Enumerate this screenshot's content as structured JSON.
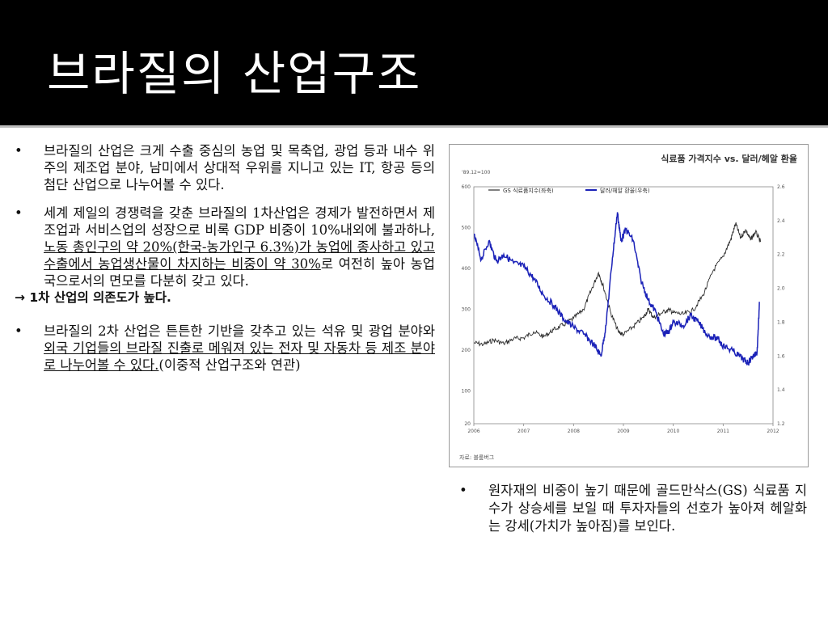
{
  "slide": {
    "title": "브라질의 산업구조"
  },
  "left_bullets": [
    {
      "text": "브라질의 산업은 크게 수출 중심의 농업 및 목축업, 광업 등과 내수 위주의 제조업 분야, 남미에서 상대적 우위를 지니고 있는 IT, 항공 등의 첨단 산업으로 나누어볼 수 있다."
    },
    {
      "pre": "세계 제일의 경쟁력을 갖춘 브라질의 1차산업은 경제가 발전하면서 제조업과 서비스업의 성장으로 비록 GDP 비중이 10%내외에 불과하나, ",
      "underlined": "노동 총인구의 약 20%(한국-농가인구 6.3%)가 농업에 종사하고 있고 수출에서 농업생산물이 차지하는 비중이 약 30%",
      "post": "로 여전히 높아 농업국으로서의 면모를 다분히 갖고 있다."
    },
    {
      "pre": "브라질의 2차 산업은 튼튼한 기반을 갖추고 있는 석유 및 광업 분야와 ",
      "underlined": "외국 기업들의 브라질 진출로 메워져 있는 전자 및 자동차 등 제조 분야로 나누어볼 수 있다.",
      "post": "(이중적 산업구조와 연관)"
    }
  ],
  "arrow_note": "→ 1차 산업의 의존도가 높다.",
  "right_bullet": "원자재의 비중이 높기 때문에 골드만삭스(GS) 식료품 지수가 상승세를 보일 때 투자자들의 선호가 높아져 헤알화는 강세(가치가 높아짐)를 보인다.",
  "bullet_glyph": "•",
  "chart_data": {
    "type": "line",
    "title": "식료품 가격지수 vs. 달러/헤알 환율",
    "left_axis_note": "'89.12=100",
    "source_note": "자료: 블룸버그",
    "x_ticks": [
      "2006",
      "2007",
      "2008",
      "2009",
      "2010",
      "2011",
      "2012"
    ],
    "xlim": [
      2006,
      2012
    ],
    "y_left_ticks": [
      "20",
      "100",
      "200",
      "300",
      "400",
      "500",
      "600"
    ],
    "y_left_lim": [
      20,
      600
    ],
    "y_right_ticks": [
      "1.2",
      "1.4",
      "1.6",
      "1.8",
      "2.0",
      "2.2",
      "2.4",
      "2.6"
    ],
    "y_right_lim": [
      1.2,
      2.6
    ],
    "colors": {
      "gs": "#2a2a2a",
      "fx": "#1b22b8"
    },
    "series": [
      {
        "name": "GS 식료품지수(좌축)",
        "axis": "left",
        "points": [
          [
            2006.0,
            218
          ],
          [
            2006.2,
            214
          ],
          [
            2006.4,
            225
          ],
          [
            2006.6,
            216
          ],
          [
            2006.8,
            228
          ],
          [
            2007.0,
            230
          ],
          [
            2007.2,
            245
          ],
          [
            2007.4,
            233
          ],
          [
            2007.6,
            250
          ],
          [
            2007.8,
            262
          ],
          [
            2008.0,
            278
          ],
          [
            2008.2,
            300
          ],
          [
            2008.35,
            345
          ],
          [
            2008.5,
            390
          ],
          [
            2008.6,
            355
          ],
          [
            2008.75,
            290
          ],
          [
            2008.9,
            245
          ],
          [
            2009.0,
            238
          ],
          [
            2009.2,
            258
          ],
          [
            2009.4,
            280
          ],
          [
            2009.5,
            300
          ],
          [
            2009.6,
            280
          ],
          [
            2009.75,
            290
          ],
          [
            2009.9,
            300
          ],
          [
            2010.0,
            292
          ],
          [
            2010.2,
            288
          ],
          [
            2010.4,
            298
          ],
          [
            2010.6,
            335
          ],
          [
            2010.8,
            395
          ],
          [
            2011.0,
            430
          ],
          [
            2011.15,
            470
          ],
          [
            2011.25,
            510
          ],
          [
            2011.35,
            475
          ],
          [
            2011.45,
            495
          ],
          [
            2011.55,
            470
          ],
          [
            2011.65,
            490
          ],
          [
            2011.75,
            465
          ]
        ]
      },
      {
        "name": "달러/헤알 환율(우축)",
        "axis": "right",
        "points": [
          [
            2006.0,
            2.32
          ],
          [
            2006.15,
            2.17
          ],
          [
            2006.3,
            2.28
          ],
          [
            2006.45,
            2.16
          ],
          [
            2006.6,
            2.2
          ],
          [
            2006.8,
            2.15
          ],
          [
            2007.0,
            2.13
          ],
          [
            2007.2,
            2.06
          ],
          [
            2007.4,
            1.96
          ],
          [
            2007.6,
            1.9
          ],
          [
            2007.8,
            1.82
          ],
          [
            2008.0,
            1.77
          ],
          [
            2008.2,
            1.73
          ],
          [
            2008.4,
            1.67
          ],
          [
            2008.55,
            1.6
          ],
          [
            2008.65,
            1.78
          ],
          [
            2008.78,
            2.18
          ],
          [
            2008.88,
            2.45
          ],
          [
            2008.95,
            2.28
          ],
          [
            2009.05,
            2.35
          ],
          [
            2009.2,
            2.28
          ],
          [
            2009.35,
            2.05
          ],
          [
            2009.5,
            1.93
          ],
          [
            2009.65,
            1.86
          ],
          [
            2009.8,
            1.73
          ],
          [
            2009.9,
            1.74
          ],
          [
            2010.0,
            1.8
          ],
          [
            2010.2,
            1.78
          ],
          [
            2010.35,
            1.84
          ],
          [
            2010.5,
            1.8
          ],
          [
            2010.7,
            1.72
          ],
          [
            2010.9,
            1.7
          ],
          [
            2011.0,
            1.66
          ],
          [
            2011.2,
            1.63
          ],
          [
            2011.4,
            1.58
          ],
          [
            2011.5,
            1.56
          ],
          [
            2011.6,
            1.6
          ],
          [
            2011.68,
            1.62
          ],
          [
            2011.73,
            1.92
          ]
        ]
      }
    ]
  }
}
